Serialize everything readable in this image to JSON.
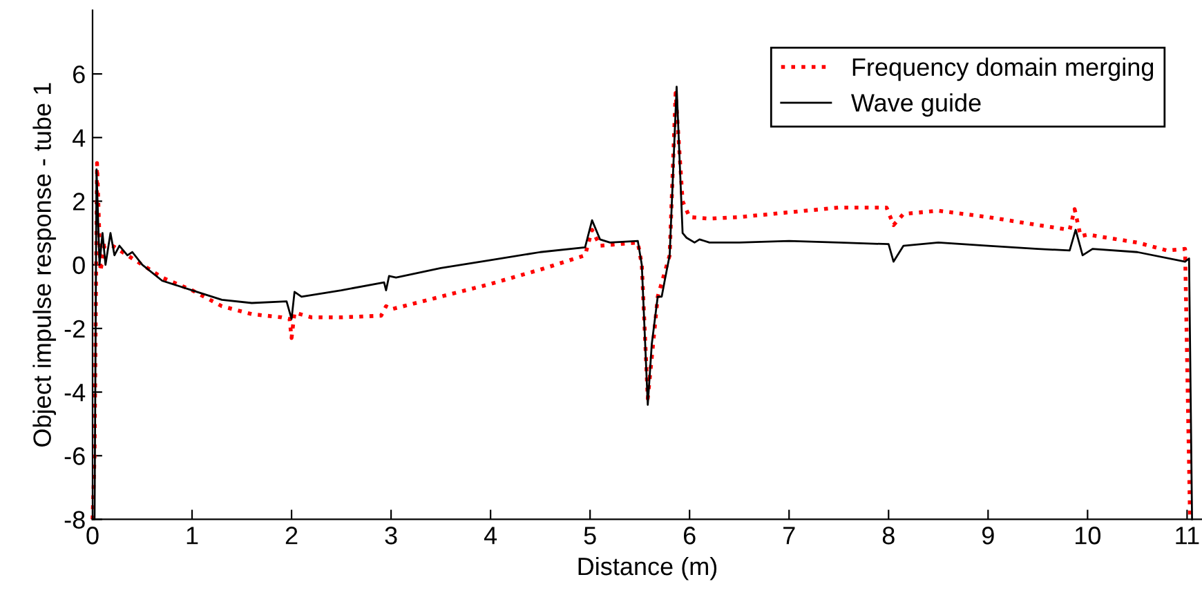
{
  "chart_data": {
    "type": "line",
    "xlabel": "Distance (m)",
    "ylabel": "Object impulse response - tube 1",
    "xlim": [
      0,
      11.15
    ],
    "ylim": [
      -8,
      8
    ],
    "xticks": [
      0,
      1,
      2,
      3,
      4,
      5,
      6,
      7,
      8,
      9,
      10,
      11
    ],
    "yticks": [
      -8,
      -6,
      -4,
      -2,
      0,
      2,
      4,
      6
    ],
    "grid": false,
    "legend": "top right",
    "series": [
      {
        "name": "Frequency domain merging",
        "color": "#ff0000",
        "line_style": "dotted",
        "x": [
          0,
          0.02,
          0.045,
          0.08,
          0.12,
          0.2,
          0.3,
          0.5,
          0.7,
          1.0,
          1.3,
          1.6,
          1.9,
          1.98,
          2.0,
          2.03,
          2.2,
          2.5,
          2.9,
          2.95,
          3.0,
          3.5,
          4.0,
          4.5,
          4.95,
          5.02,
          5.1,
          5.48,
          5.52,
          5.58,
          5.68,
          5.8,
          5.86,
          5.93,
          6.0,
          6.2,
          6.5,
          7.0,
          7.5,
          7.98,
          8.05,
          8.15,
          8.5,
          9.0,
          9.5,
          9.82,
          9.87,
          9.93,
          10.0,
          10.5,
          10.8,
          10.98,
          11.03
        ],
        "values": [
          -8,
          -6,
          3.2,
          -0.2,
          0.6,
          0.6,
          0.4,
          0.0,
          -0.4,
          -0.8,
          -1.3,
          -1.55,
          -1.65,
          -1.7,
          -2.3,
          -1.5,
          -1.65,
          -1.65,
          -1.6,
          -1.3,
          -1.4,
          -1.0,
          -0.6,
          -0.15,
          0.3,
          1.1,
          0.6,
          0.7,
          0,
          -4.2,
          -1.0,
          0.3,
          5.4,
          2.0,
          1.5,
          1.45,
          1.5,
          1.65,
          1.8,
          1.8,
          1.25,
          1.6,
          1.7,
          1.5,
          1.25,
          1.1,
          1.75,
          0.9,
          0.95,
          0.7,
          0.45,
          0.5,
          -8
        ]
      },
      {
        "name": "Wave guide",
        "color": "#000000",
        "line_style": "solid",
        "x": [
          0,
          0.02,
          0.04,
          0.07,
          0.1,
          0.13,
          0.18,
          0.22,
          0.27,
          0.35,
          0.4,
          0.5,
          0.7,
          1.0,
          1.3,
          1.6,
          1.95,
          2.0,
          2.03,
          2.1,
          2.5,
          2.93,
          2.95,
          2.98,
          3.05,
          3.5,
          4.0,
          4.5,
          4.95,
          5.02,
          5.1,
          5.2,
          5.48,
          5.52,
          5.58,
          5.62,
          5.68,
          5.72,
          5.75,
          5.8,
          5.87,
          5.93,
          5.97,
          6.05,
          6.1,
          6.2,
          6.5,
          7.0,
          7.5,
          8.0,
          8.05,
          8.15,
          8.5,
          9.0,
          9.5,
          9.82,
          9.88,
          9.95,
          10.05,
          10.5,
          10.98,
          11.02,
          11.05
        ],
        "values": [
          -8,
          -8,
          3.0,
          0,
          1.0,
          0,
          1.0,
          0.3,
          0.6,
          0.3,
          0.4,
          0,
          -0.5,
          -0.8,
          -1.1,
          -1.2,
          -1.15,
          -1.7,
          -0.85,
          -1.0,
          -0.8,
          -0.55,
          -0.8,
          -0.35,
          -0.4,
          -0.1,
          0.15,
          0.4,
          0.55,
          1.4,
          0.8,
          0.7,
          0.75,
          0,
          -4.4,
          -2.5,
          -1.0,
          -1.0,
          -0.5,
          0.3,
          5.6,
          1.0,
          0.85,
          0.7,
          0.8,
          0.7,
          0.7,
          0.75,
          0.7,
          0.65,
          0.1,
          0.6,
          0.7,
          0.6,
          0.5,
          0.45,
          1.1,
          0.3,
          0.5,
          0.4,
          0.1,
          0.2,
          -8
        ]
      }
    ]
  }
}
